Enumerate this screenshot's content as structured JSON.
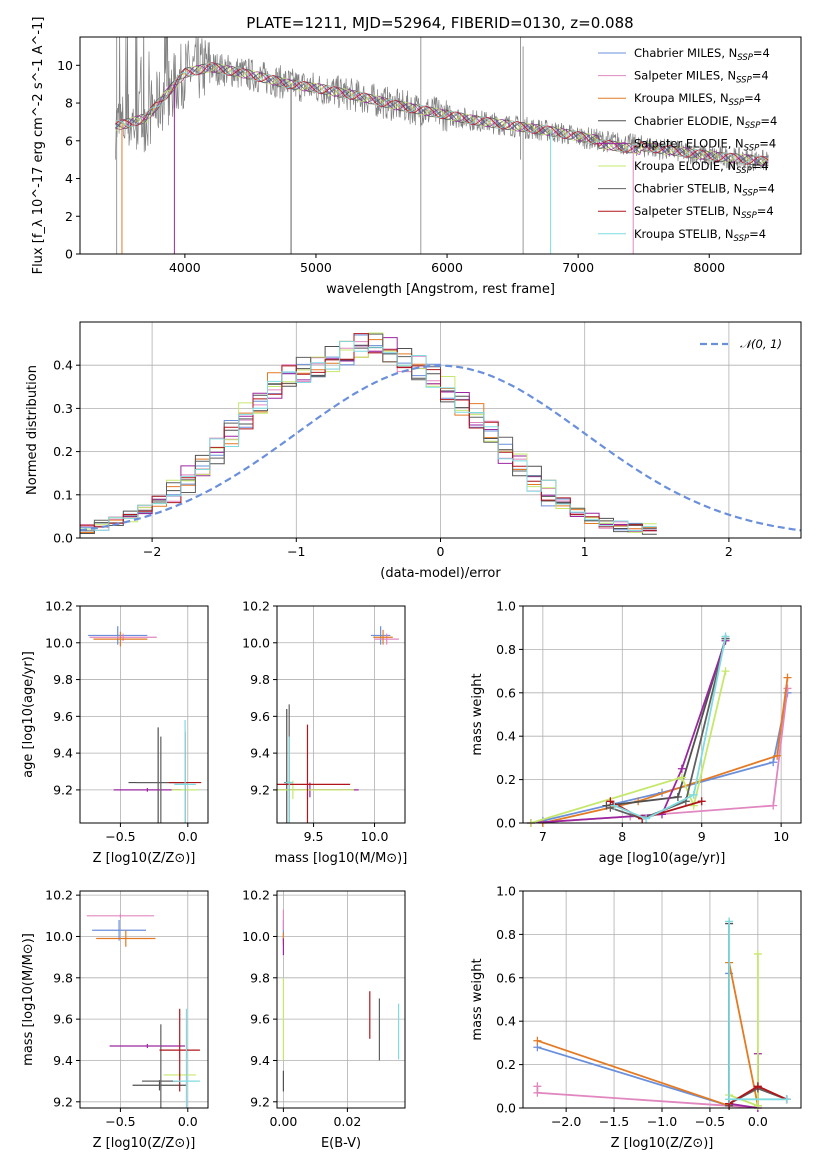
{
  "chart_data": [
    {
      "type": "line",
      "title": "PLATE=1211, MJD=52964, FIBERID=0130, z=0.088",
      "xlabel": "wavelength [Angstrom, rest frame]",
      "ylabel": "Flux [f_λ 10^-17 erg cm^-2 s^-1 A^-1]",
      "xlim": [
        3200,
        8700
      ],
      "ylim": [
        0,
        11.5
      ],
      "xticks": [
        "4000",
        "5000",
        "6000",
        "7000",
        "8000"
      ],
      "yticks": [
        "0",
        "2",
        "4",
        "6",
        "8",
        "10"
      ],
      "grid": false,
      "legend_position": "top-right",
      "data_color": "#808080",
      "continuum": {
        "x": [
          3470,
          3550,
          3700,
          3850,
          4000,
          4200,
          4500,
          4800,
          5000,
          5300,
          5600,
          5900,
          6200,
          6500,
          6800,
          7100,
          7400,
          7700,
          8000,
          8300,
          8450
        ],
        "y": [
          6.8,
          6.9,
          7.2,
          8.4,
          9.6,
          9.9,
          9.5,
          9.0,
          8.8,
          8.4,
          7.9,
          7.5,
          7.1,
          6.8,
          6.5,
          6.1,
          5.8,
          5.5,
          5.2,
          5.0,
          4.9
        ]
      },
      "series": [
        {
          "name": "Chabrier MILES",
          "subscript": "SSP",
          "n": "4",
          "color": "#6a8fdb"
        },
        {
          "name": "Salpeter MILES",
          "subscript": "SSP",
          "n": "4",
          "color": "#e187c0"
        },
        {
          "name": "Kroupa MILES",
          "subscript": "SSP",
          "n": "4",
          "color": "#e37a24"
        },
        {
          "name": "Chabrier ELODIE",
          "subscript": "SSP",
          "n": "4",
          "color": "#505050"
        },
        {
          "name": "Salpeter ELODIE",
          "subscript": "SSP",
          "n": "4",
          "color": "#9b27a0"
        },
        {
          "name": "Kroupa ELODIE",
          "subscript": "SSP",
          "n": "4",
          "color": "#c5e86c"
        },
        {
          "name": "Chabrier STELIB",
          "subscript": "SSP",
          "n": "4",
          "color": "#606060"
        },
        {
          "name": "Salpeter STELIB",
          "subscript": "SSP",
          "n": "4",
          "color": "#b0151b"
        },
        {
          "name": "Kroupa STELIB",
          "subscript": "SSP",
          "n": "4",
          "color": "#7fdbe0"
        }
      ]
    },
    {
      "type": "histogram",
      "xlabel": "(data-model)/error",
      "ylabel": "Normed distribution",
      "xlim": [
        -2.5,
        2.5
      ],
      "ylim": [
        0,
        0.5
      ],
      "xticks": [
        "−2",
        "−1",
        "0",
        "1",
        "2"
      ],
      "yticks": [
        "0.0",
        "0.1",
        "0.2",
        "0.3",
        "0.4"
      ],
      "grid": true,
      "legend_position": "top-right",
      "reference_curve": {
        "name": "𝒩(0, 1)",
        "color": "#6a8fdb",
        "style": "dashed"
      },
      "bin_edges_start": -2.5,
      "bin_width": 0.1,
      "base_density": [
        0.02,
        0.025,
        0.03,
        0.035,
        0.04,
        0.045,
        0.05,
        0.055,
        0.065,
        0.075,
        0.085,
        0.095,
        0.11,
        0.12,
        0.135,
        0.15,
        0.165,
        0.18,
        0.2,
        0.22,
        0.24,
        0.26,
        0.28,
        0.3,
        0.31,
        0.33,
        0.35,
        0.36,
        0.37,
        0.38,
        0.385,
        0.39,
        0.395,
        0.4,
        0.41,
        0.42,
        0.425,
        0.43,
        0.44,
        0.45,
        0.45,
        0.44,
        0.43,
        0.42,
        0.41,
        0.4,
        0.39,
        0.38,
        0.37,
        0.36,
        0.34,
        0.33,
        0.31,
        0.3,
        0.28,
        0.26,
        0.24,
        0.22,
        0.2,
        0.185,
        0.17,
        0.15,
        0.135,
        0.12,
        0.105,
        0.09,
        0.08,
        0.07,
        0.06,
        0.05,
        0.045,
        0.04,
        0.035,
        0.03,
        0.027,
        0.025,
        0.023,
        0.022,
        0.021,
        0.02
      ]
    },
    {
      "type": "scatter",
      "xlabel": "Z [log10(Z/Z⊙)]",
      "ylabel": "age [log10(age/yr)]",
      "xlim": [
        -0.8,
        0.15
      ],
      "ylim": [
        9.02,
        10.2
      ],
      "xticks": [
        "−0.5",
        "0.0"
      ],
      "yticks": [
        "9.2",
        "9.4",
        "9.6",
        "9.8",
        "10.0",
        "10.2"
      ],
      "grid": true,
      "points": [
        {
          "x": -0.52,
          "y": 10.04,
          "xerr": 0.22,
          "yerr": 0.1,
          "series": 0
        },
        {
          "x": -0.48,
          "y": 10.03,
          "xerr": 0.25,
          "yerr": 0.04,
          "series": 1
        },
        {
          "x": -0.5,
          "y": 10.02,
          "xerr": 0.2,
          "yerr": 0.08,
          "series": 2
        },
        {
          "x": -0.22,
          "y": 9.24,
          "xerr": 0.22,
          "yerr": 0.6,
          "series": 3
        },
        {
          "x": -0.3,
          "y": 9.2,
          "xerr": 0.25,
          "yerr": 0.02,
          "series": 4
        },
        {
          "x": -0.02,
          "y": 9.2,
          "xerr": 0.1,
          "yerr": 0.05,
          "series": 5
        },
        {
          "x": -0.2,
          "y": 9.24,
          "xerr": 0.18,
          "yerr": 0.5,
          "series": 6
        },
        {
          "x": -0.02,
          "y": 9.24,
          "xerr": 0.12,
          "yerr": 0.55,
          "series": 7
        },
        {
          "x": -0.02,
          "y": 9.23,
          "xerr": 0.08,
          "yerr": 0.7,
          "series": 8
        }
      ]
    },
    {
      "type": "scatter",
      "xlabel": "mass [log10(M/M⊙)]",
      "ylabel": "",
      "xlim": [
        9.2,
        10.25
      ],
      "ylim": [
        9.02,
        10.2
      ],
      "xticks": [
        "9.5",
        "10.0"
      ],
      "yticks": [
        "9.2",
        "9.4",
        "9.6",
        "9.8",
        "10.0",
        "10.2"
      ],
      "grid": true,
      "points": [
        {
          "x": 10.05,
          "y": 10.04,
          "xerr": 0.08,
          "yerr": 0.1,
          "series": 0
        },
        {
          "x": 10.1,
          "y": 10.02,
          "xerr": 0.1,
          "yerr": 0.06,
          "series": 1
        },
        {
          "x": 10.07,
          "y": 10.03,
          "xerr": 0.08,
          "yerr": 0.08,
          "series": 2
        },
        {
          "x": 9.28,
          "y": 9.24,
          "xerr": 0.02,
          "yerr": 0.8,
          "series": 3
        },
        {
          "x": 9.47,
          "y": 9.2,
          "xerr": 0.4,
          "yerr": 0.08,
          "series": 4
        },
        {
          "x": 9.33,
          "y": 9.2,
          "xerr": 0.5,
          "yerr": 0.1,
          "series": 5
        },
        {
          "x": 9.3,
          "y": 9.24,
          "xerr": 0.02,
          "yerr": 0.85,
          "series": 6
        },
        {
          "x": 9.45,
          "y": 9.23,
          "xerr": 0.35,
          "yerr": 0.65,
          "series": 7
        },
        {
          "x": 9.3,
          "y": 9.24,
          "xerr": 0.03,
          "yerr": 0.5,
          "series": 8
        }
      ]
    },
    {
      "type": "line",
      "xlabel": "age [log10(age/yr)]",
      "ylabel": "mass weight",
      "xlim": [
        6.75,
        10.25
      ],
      "ylim": [
        0,
        1
      ],
      "xticks": [
        "7",
        "8",
        "9",
        "10"
      ],
      "yticks": [
        "0.0",
        "0.2",
        "0.4",
        "0.6",
        "0.8",
        "1.0"
      ],
      "grid": true,
      "lines": [
        {
          "series": 0,
          "x": [
            7.0,
            8.5,
            9.9,
            10.08
          ],
          "y": [
            0.01,
            0.14,
            0.28,
            0.6
          ]
        },
        {
          "series": 1,
          "x": [
            6.85,
            8.1,
            9.9,
            10.08
          ],
          "y": [
            0.0,
            0.03,
            0.08,
            0.62
          ]
        },
        {
          "series": 2,
          "x": [
            7.0,
            8.2,
            9.95,
            10.08
          ],
          "y": [
            0.0,
            0.1,
            0.31,
            0.67
          ]
        },
        {
          "series": 3,
          "x": [
            7.8,
            8.7,
            9.3
          ],
          "y": [
            0.08,
            0.12,
            0.85
          ]
        },
        {
          "series": 4,
          "x": [
            6.85,
            8.5,
            8.75,
            9.3
          ],
          "y": [
            0.0,
            0.04,
            0.25,
            0.84
          ]
        },
        {
          "series": 5,
          "x": [
            6.85,
            8.75,
            8.9,
            9.3
          ],
          "y": [
            0.0,
            0.21,
            0.08,
            0.7
          ]
        },
        {
          "series": 6,
          "x": [
            7.85,
            8.25,
            8.8,
            9.3
          ],
          "y": [
            0.07,
            0.02,
            0.1,
            0.85
          ]
        },
        {
          "series": 7,
          "x": [
            7.85,
            8.25,
            9.0
          ],
          "y": [
            0.1,
            0.02,
            0.1
          ]
        },
        {
          "series": 8,
          "x": [
            7.9,
            8.3,
            8.9,
            9.3
          ],
          "y": [
            0.08,
            0.02,
            0.13,
            0.86
          ]
        }
      ]
    },
    {
      "type": "scatter",
      "xlabel": "Z [log10(Z/Z⊙)]",
      "ylabel": "mass [log10(M/M⊙)]",
      "xlim": [
        -0.8,
        0.15
      ],
      "ylim": [
        9.17,
        10.22
      ],
      "xticks": [
        "−0.5",
        "0.0"
      ],
      "yticks": [
        "9.2",
        "9.4",
        "9.6",
        "9.8",
        "10.0",
        "10.2"
      ],
      "grid": true,
      "points": [
        {
          "x": -0.51,
          "y": 10.03,
          "xerr": 0.2,
          "yerr": 0.1,
          "series": 0
        },
        {
          "x": -0.5,
          "y": 10.1,
          "xerr": 0.25,
          "yerr": 0.02,
          "series": 1
        },
        {
          "x": -0.46,
          "y": 9.99,
          "xerr": 0.22,
          "yerr": 0.08,
          "series": 2
        },
        {
          "x": -0.21,
          "y": 9.28,
          "xerr": 0.2,
          "yerr": 0.05,
          "series": 3
        },
        {
          "x": -0.3,
          "y": 9.47,
          "xerr": 0.28,
          "yerr": 0.02,
          "series": 4
        },
        {
          "x": -0.06,
          "y": 9.33,
          "xerr": 0.12,
          "yerr": 0.02,
          "series": 5
        },
        {
          "x": -0.2,
          "y": 9.3,
          "xerr": 0.14,
          "yerr": 0.55,
          "series": 6
        },
        {
          "x": -0.06,
          "y": 9.45,
          "xerr": 0.15,
          "yerr": 0.4,
          "series": 7
        },
        {
          "x": -0.01,
          "y": 9.3,
          "xerr": 0.1,
          "yerr": 0.7,
          "series": 8
        }
      ]
    },
    {
      "type": "scatter",
      "xlabel": "E(B-V)",
      "ylabel": "",
      "xlim": [
        -0.002,
        0.038
      ],
      "ylim": [
        9.17,
        10.22
      ],
      "xticks": [
        "0.00",
        "0.02"
      ],
      "yticks": [
        "9.2",
        "9.4",
        "9.6",
        "9.8",
        "10.0",
        "10.2"
      ],
      "grid": true,
      "points": [
        {
          "x": 0.0,
          "y": 10.03,
          "yerr": 0.1,
          "series": 0
        },
        {
          "x": 0.0,
          "y": 10.08,
          "yerr": 0.1,
          "series": 1
        },
        {
          "x": 0.0,
          "y": 9.99,
          "yerr": 0.06,
          "series": 2
        },
        {
          "x": 0.0,
          "y": 9.3,
          "yerr": 0.1,
          "series": 3
        },
        {
          "x": 0.0,
          "y": 9.95,
          "yerr": 0.08,
          "series": 4
        },
        {
          "x": 0.0,
          "y": 9.6,
          "yerr": 0.4,
          "series": 5
        },
        {
          "x": 0.03,
          "y": 9.55,
          "yerr": 0.3,
          "series": 6
        },
        {
          "x": 0.027,
          "y": 9.62,
          "yerr": 0.23,
          "series": 7
        },
        {
          "x": 0.036,
          "y": 9.54,
          "yerr": 0.27,
          "series": 8
        }
      ]
    },
    {
      "type": "line",
      "xlabel": "Z [log10(Z/Z⊙)]",
      "ylabel": "mass weight",
      "xlim": [
        -2.45,
        0.45
      ],
      "ylim": [
        0,
        1
      ],
      "xticks": [
        "−2.0",
        "−1.5",
        "−1.0",
        "−0.5",
        "0.0"
      ],
      "yticks": [
        "0.0",
        "0.2",
        "0.4",
        "0.6",
        "0.8",
        "1.0"
      ],
      "grid": true,
      "lines": [
        {
          "series": 0,
          "x": [
            -2.3,
            -0.3,
            -0.3
          ],
          "y": [
            0.28,
            0.01,
            0.62
          ]
        },
        {
          "series": 1,
          "x": [
            -2.3,
            -2.3,
            -0.3,
            0.0
          ],
          "y": [
            0.1,
            0.07,
            0.01,
            0.0
          ]
        },
        {
          "series": 2,
          "x": [
            -2.3,
            -0.3,
            -0.3,
            0.0
          ],
          "y": [
            0.31,
            0.01,
            0.67,
            0.01
          ]
        },
        {
          "series": 3,
          "x": [
            -0.3,
            -0.3
          ],
          "y": [
            0.01,
            0.85
          ]
        },
        {
          "series": 4,
          "x": [
            -0.3,
            0.0,
            0.0
          ],
          "y": [
            0.02,
            0.0,
            0.25
          ]
        },
        {
          "series": 5,
          "x": [
            -0.3,
            0.0,
            0.0
          ],
          "y": [
            0.06,
            0.01,
            0.71
          ]
        },
        {
          "series": 6,
          "x": [
            -0.3,
            0.0,
            0.3
          ],
          "y": [
            0.02,
            0.09,
            0.04
          ]
        },
        {
          "series": 7,
          "x": [
            -0.3,
            0.0,
            0.3
          ],
          "y": [
            0.02,
            0.1,
            0.04
          ]
        },
        {
          "series": 8,
          "x": [
            -0.3,
            -0.3,
            0.3
          ],
          "y": [
            0.86,
            0.04,
            0.04
          ]
        }
      ]
    }
  ]
}
